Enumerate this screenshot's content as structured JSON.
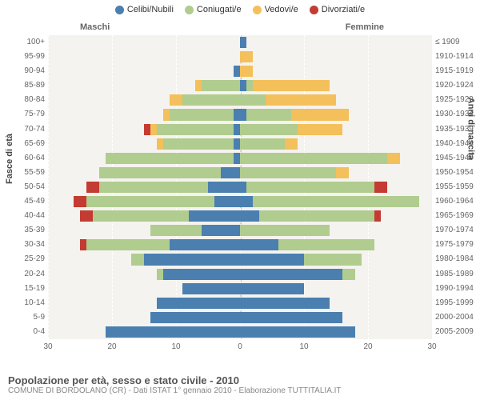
{
  "legend": {
    "items": [
      {
        "label": "Celibi/Nubili",
        "color": "#4a7fb0"
      },
      {
        "label": "Coniugati/e",
        "color": "#b0cc8f"
      },
      {
        "label": "Vedovi/e",
        "color": "#f4c05b"
      },
      {
        "label": "Divorziati/e",
        "color": "#c33b32"
      }
    ]
  },
  "header": {
    "male": "Maschi",
    "female": "Femmine"
  },
  "axis": {
    "left_title": "Fasce di età",
    "right_title": "Anni di nascita",
    "xmax": 30,
    "xticks": [
      30,
      20,
      10,
      0,
      10,
      20,
      30
    ]
  },
  "footer": {
    "title": "Popolazione per età, sesso e stato civile - 2010",
    "subtitle": "COMUNE DI BORDOLANO (CR) - Dati ISTAT 1° gennaio 2010 - Elaborazione TUTTITALIA.IT"
  },
  "chart": {
    "type": "population-pyramid",
    "background_color": "#f5f3ef",
    "grid_color": "#ffffff",
    "colors": {
      "single": "#4a7fb0",
      "married": "#b0cc8f",
      "widowed": "#f4c05b",
      "divorced": "#c33b32"
    },
    "rows": [
      {
        "age": "100+",
        "birth": "≤ 1909",
        "m": {
          "s": 0,
          "c": 0,
          "w": 0,
          "d": 0
        },
        "f": {
          "s": 1,
          "c": 0,
          "w": 0,
          "d": 0
        }
      },
      {
        "age": "95-99",
        "birth": "1910-1914",
        "m": {
          "s": 0,
          "c": 0,
          "w": 0,
          "d": 0
        },
        "f": {
          "s": 0,
          "c": 0,
          "w": 2,
          "d": 0
        }
      },
      {
        "age": "90-94",
        "birth": "1915-1919",
        "m": {
          "s": 1,
          "c": 0,
          "w": 0,
          "d": 0
        },
        "f": {
          "s": 0,
          "c": 0,
          "w": 2,
          "d": 0
        }
      },
      {
        "age": "85-89",
        "birth": "1920-1924",
        "m": {
          "s": 0,
          "c": 6,
          "w": 1,
          "d": 0
        },
        "f": {
          "s": 1,
          "c": 1,
          "w": 12,
          "d": 0
        }
      },
      {
        "age": "80-84",
        "birth": "1925-1929",
        "m": {
          "s": 0,
          "c": 9,
          "w": 2,
          "d": 0
        },
        "f": {
          "s": 0,
          "c": 4,
          "w": 11,
          "d": 0
        }
      },
      {
        "age": "75-79",
        "birth": "1930-1934",
        "m": {
          "s": 1,
          "c": 10,
          "w": 1,
          "d": 0
        },
        "f": {
          "s": 1,
          "c": 7,
          "w": 9,
          "d": 0
        }
      },
      {
        "age": "70-74",
        "birth": "1935-1939",
        "m": {
          "s": 1,
          "c": 12,
          "w": 1,
          "d": 1
        },
        "f": {
          "s": 0,
          "c": 9,
          "w": 7,
          "d": 0
        }
      },
      {
        "age": "65-69",
        "birth": "1940-1944",
        "m": {
          "s": 1,
          "c": 11,
          "w": 1,
          "d": 0
        },
        "f": {
          "s": 0,
          "c": 7,
          "w": 2,
          "d": 0
        }
      },
      {
        "age": "60-64",
        "birth": "1945-1949",
        "m": {
          "s": 1,
          "c": 20,
          "w": 0,
          "d": 0
        },
        "f": {
          "s": 0,
          "c": 23,
          "w": 2,
          "d": 0
        }
      },
      {
        "age": "55-59",
        "birth": "1950-1954",
        "m": {
          "s": 3,
          "c": 19,
          "w": 0,
          "d": 0
        },
        "f": {
          "s": 0,
          "c": 15,
          "w": 2,
          "d": 0
        }
      },
      {
        "age": "50-54",
        "birth": "1955-1959",
        "m": {
          "s": 5,
          "c": 17,
          "w": 0,
          "d": 2
        },
        "f": {
          "s": 1,
          "c": 20,
          "w": 0,
          "d": 2
        }
      },
      {
        "age": "45-49",
        "birth": "1960-1964",
        "m": {
          "s": 4,
          "c": 20,
          "w": 0,
          "d": 2
        },
        "f": {
          "s": 2,
          "c": 26,
          "w": 0,
          "d": 0
        }
      },
      {
        "age": "40-44",
        "birth": "1965-1969",
        "m": {
          "s": 8,
          "c": 15,
          "w": 0,
          "d": 2
        },
        "f": {
          "s": 3,
          "c": 18,
          "w": 0,
          "d": 1
        }
      },
      {
        "age": "35-39",
        "birth": "1970-1974",
        "m": {
          "s": 6,
          "c": 8,
          "w": 0,
          "d": 0
        },
        "f": {
          "s": 0,
          "c": 14,
          "w": 0,
          "d": 0
        }
      },
      {
        "age": "30-34",
        "birth": "1975-1979",
        "m": {
          "s": 11,
          "c": 13,
          "w": 0,
          "d": 1
        },
        "f": {
          "s": 6,
          "c": 15,
          "w": 0,
          "d": 0
        }
      },
      {
        "age": "25-29",
        "birth": "1980-1984",
        "m": {
          "s": 15,
          "c": 2,
          "w": 0,
          "d": 0
        },
        "f": {
          "s": 10,
          "c": 9,
          "w": 0,
          "d": 0
        }
      },
      {
        "age": "20-24",
        "birth": "1985-1989",
        "m": {
          "s": 12,
          "c": 1,
          "w": 0,
          "d": 0
        },
        "f": {
          "s": 16,
          "c": 2,
          "w": 0,
          "d": 0
        }
      },
      {
        "age": "15-19",
        "birth": "1990-1994",
        "m": {
          "s": 9,
          "c": 0,
          "w": 0,
          "d": 0
        },
        "f": {
          "s": 10,
          "c": 0,
          "w": 0,
          "d": 0
        }
      },
      {
        "age": "10-14",
        "birth": "1995-1999",
        "m": {
          "s": 13,
          "c": 0,
          "w": 0,
          "d": 0
        },
        "f": {
          "s": 14,
          "c": 0,
          "w": 0,
          "d": 0
        }
      },
      {
        "age": "5-9",
        "birth": "2000-2004",
        "m": {
          "s": 14,
          "c": 0,
          "w": 0,
          "d": 0
        },
        "f": {
          "s": 16,
          "c": 0,
          "w": 0,
          "d": 0
        }
      },
      {
        "age": "0-4",
        "birth": "2005-2009",
        "m": {
          "s": 21,
          "c": 0,
          "w": 0,
          "d": 0
        },
        "f": {
          "s": 18,
          "c": 0,
          "w": 0,
          "d": 0
        }
      }
    ]
  }
}
